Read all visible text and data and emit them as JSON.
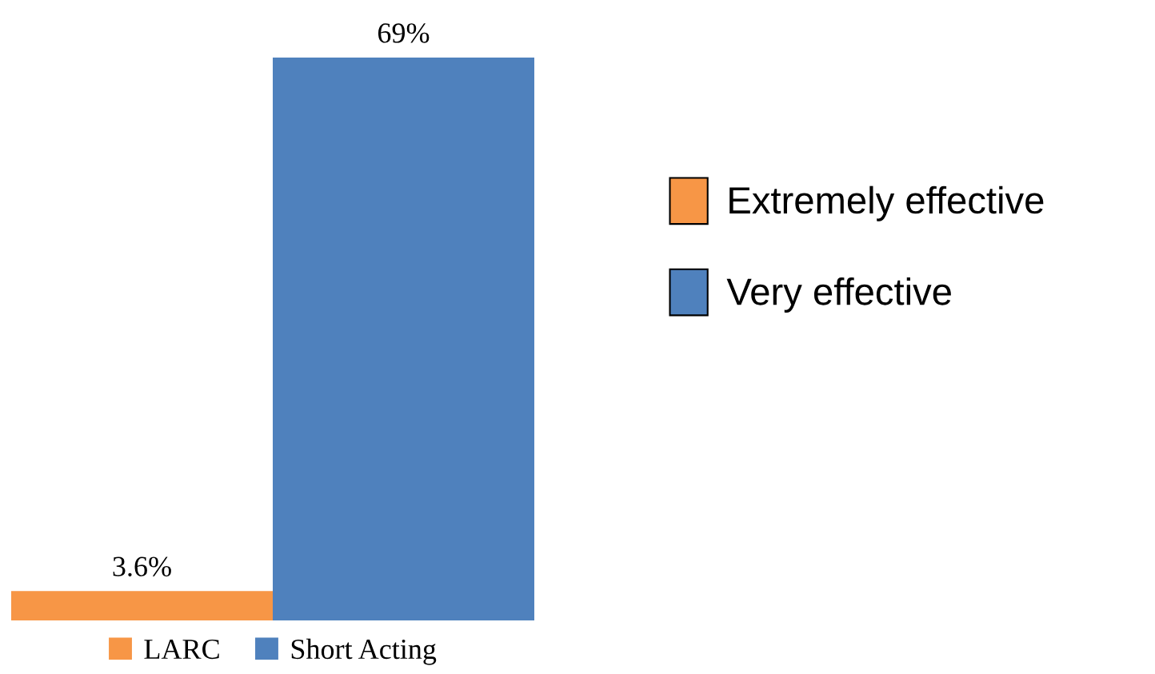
{
  "chart_data": {
    "type": "bar",
    "categories": [
      null
    ],
    "series": [
      {
        "name": "LARC",
        "color": "#f79646",
        "values": [
          3.6
        ],
        "value_labels": [
          "3.6%"
        ]
      },
      {
        "name": "Short Acting",
        "color": "#4f81bd",
        "values": [
          69
        ],
        "value_labels": [
          "69%"
        ]
      }
    ],
    "annotations": [
      "Extremely effective",
      "Very effective"
    ],
    "legend": "bottom",
    "grid": false
  }
}
